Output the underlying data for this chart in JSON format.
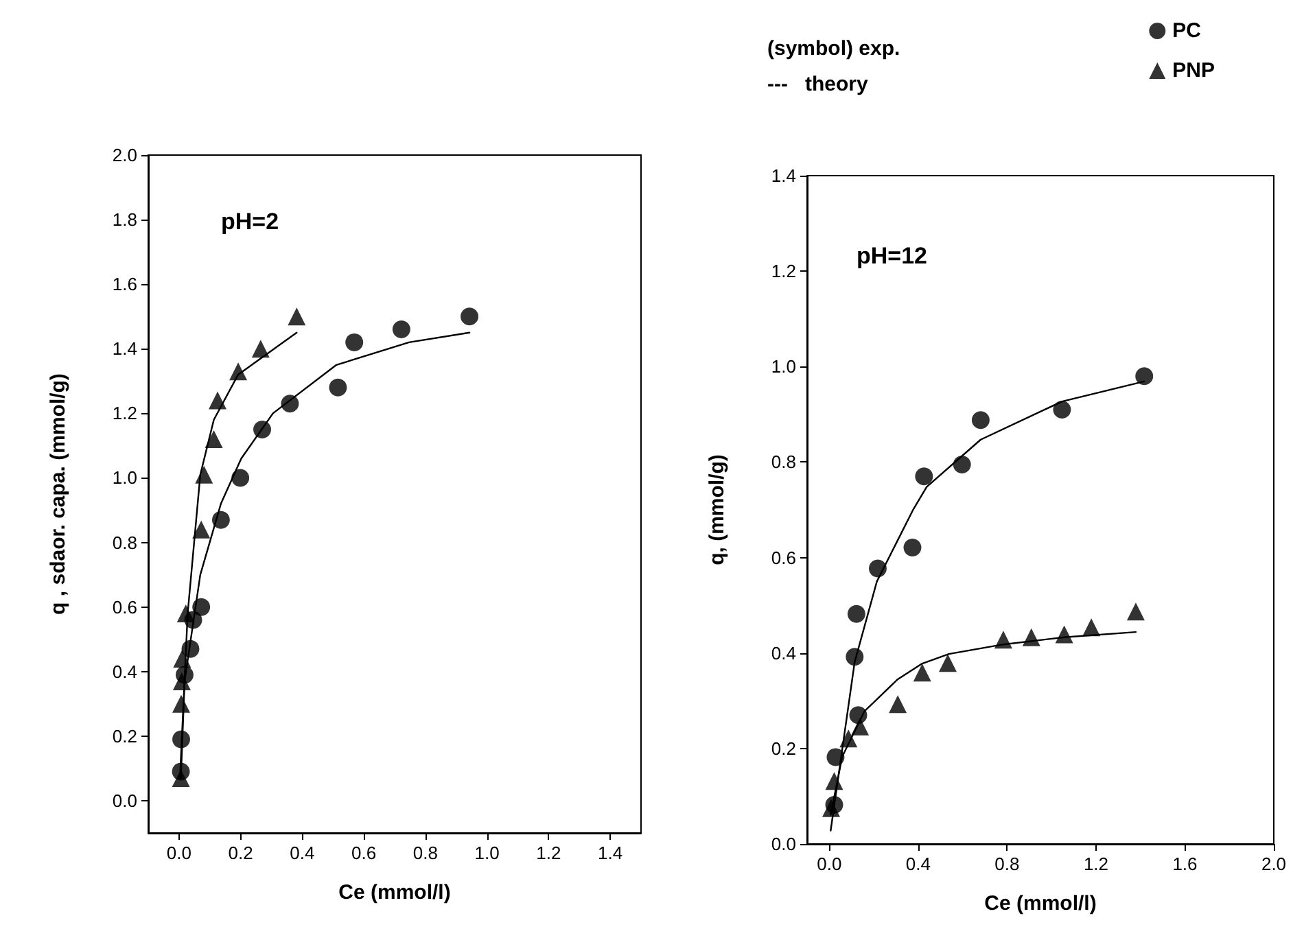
{
  "chart_data": [
    {
      "type": "scatter",
      "title": "pH=2",
      "xlabel": "Ce (mmol/l)",
      "ylabel": "q , sdaor. capa. (mmol/g)",
      "xlim": [
        -0.1,
        1.5
      ],
      "ylim": [
        -0.1,
        2.0
      ],
      "xticks": [
        {
          "value": 0,
          "label": "0.0"
        },
        0.2,
        0.4,
        0.6,
        0.8,
        {
          "value": 1,
          "label": "1.0"
        },
        1.2,
        1.4
      ],
      "yticks": [
        {
          "value": 0,
          "label": "0.0"
        },
        0.2,
        0.4,
        0.6,
        0.8,
        {
          "value": 1,
          "label": "1.0"
        },
        1.2,
        1.4,
        1.6,
        1.8,
        {
          "value": 2,
          "label": "2.0"
        }
      ],
      "grid": false,
      "legend": false,
      "series": [
        {
          "marker": "circle",
          "color": "#000000",
          "x": [
            0.006,
            0.007,
            0.018,
            0.037,
            0.046,
            0.072,
            0.136,
            0.199,
            0.27,
            0.36,
            0.516,
            0.569,
            0.722,
            0.943
          ],
          "values": [
            0.09,
            0.19,
            0.39,
            0.47,
            0.56,
            0.6,
            0.87,
            1.0,
            1.15,
            1.23,
            1.28,
            1.42,
            1.46,
            1.5
          ]
        },
        {
          "marker": "triangle",
          "color": "#000000",
          "x": [
            0.006,
            0.007,
            0.009,
            0.01,
            0.022,
            0.072,
            0.081,
            0.113,
            0.125,
            0.192,
            0.265,
            0.382
          ],
          "values": [
            0.07,
            0.3,
            0.37,
            0.44,
            0.58,
            0.84,
            1.01,
            1.12,
            1.24,
            1.33,
            1.4,
            1.5
          ]
        },
        {
          "type": "line",
          "marker": "none",
          "line_style": "solid",
          "color": "#000000",
          "x": [
            0.006,
            0.018,
            0.069,
            0.136,
            0.202,
            0.305,
            0.511,
            0.747,
            0.943
          ],
          "values": [
            0.07,
            0.37,
            0.7,
            0.92,
            1.06,
            1.2,
            1.35,
            1.42,
            1.45
          ]
        },
        {
          "type": "line",
          "marker": "none",
          "line_style": "solid",
          "color": "#000000",
          "x": [
            0.003,
            0.028,
            0.069,
            0.113,
            0.192,
            0.382
          ],
          "values": [
            0.07,
            0.58,
            1.01,
            1.18,
            1.32,
            1.45
          ]
        }
      ]
    },
    {
      "type": "scatter",
      "title": "pH=12",
      "xlabel": "Ce (mmol/l)",
      "ylabel": "q, (mmol/g)",
      "xlim": [
        -0.1,
        2.0
      ],
      "ylim": [
        0,
        1.4
      ],
      "xticks": [
        {
          "value": 0,
          "label": "0.0"
        },
        0.4,
        0.8,
        1.2,
        1.6,
        {
          "value": 2,
          "label": "2.0"
        }
      ],
      "yticks": [
        {
          "value": 0,
          "label": "0.0"
        },
        0.2,
        0.4,
        0.6,
        0.8,
        {
          "value": 1,
          "label": "1.0"
        },
        1.2,
        1.4
      ],
      "grid": false,
      "legend": "top right",
      "annotations": [
        "(symbol) exp.",
        "---   theory"
      ],
      "series": [
        {
          "name": "PC",
          "marker": "circle",
          "color": "#000000",
          "x": [
            0.022,
            0.028,
            0.114,
            0.122,
            0.13,
            0.218,
            0.374,
            0.426,
            0.597,
            0.681,
            1.047,
            1.417
          ],
          "values": [
            0.082,
            0.182,
            0.392,
            0.482,
            0.27,
            0.577,
            0.621,
            0.77,
            0.795,
            0.888,
            0.91,
            0.98
          ]
        },
        {
          "name": "PNP",
          "marker": "triangle",
          "color": "#000000",
          "x": [
            0.008,
            0.022,
            0.086,
            0.138,
            0.308,
            0.418,
            0.533,
            0.783,
            0.909,
            1.057,
            1.179,
            1.379
          ],
          "values": [
            0.075,
            0.132,
            0.221,
            0.246,
            0.293,
            0.359,
            0.379,
            0.428,
            0.433,
            0.439,
            0.454,
            0.487
          ]
        },
        {
          "type": "line",
          "marker": "none",
          "line_style": "solid",
          "color": "#000000",
          "x": [
            0.006,
            0.114,
            0.214,
            0.378,
            0.438,
            0.681,
            1.047,
            1.417
          ],
          "values": [
            0.028,
            0.381,
            0.55,
            0.701,
            0.748,
            0.847,
            0.927,
            0.969
          ]
        },
        {
          "type": "line",
          "marker": "none",
          "line_style": "solid",
          "color": "#000000",
          "x": [
            0.006,
            0.058,
            0.158,
            0.308,
            0.418,
            0.538,
            0.783,
            1.057,
            1.379
          ],
          "values": [
            0.061,
            0.183,
            0.278,
            0.345,
            0.378,
            0.398,
            0.418,
            0.433,
            0.444
          ]
        }
      ]
    }
  ]
}
